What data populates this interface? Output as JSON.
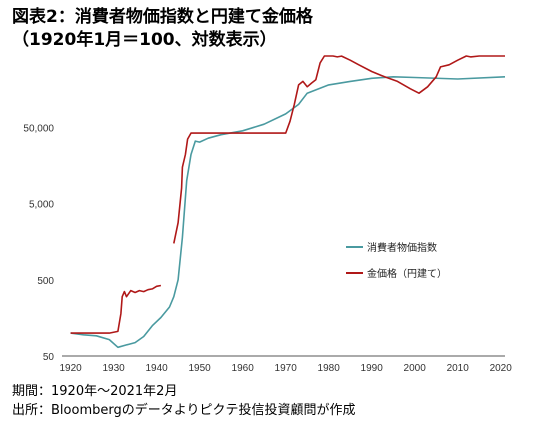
{
  "header": {
    "title_line1": "図表2：消費者物価指数と円建て金価格",
    "title_line2": "（1920年1月＝100、対数表示）"
  },
  "footer": {
    "period": "期間：1920年～2021年2月",
    "source": "出所：Bloombergのデータよりピクテ投信投資顧問が作成"
  },
  "chart_data": {
    "type": "line",
    "y_scale": "log",
    "xlim": [
      1918,
      2021
    ],
    "ylim": [
      50,
      300000
    ],
    "x_ticks": [
      1920,
      1930,
      1940,
      1950,
      1960,
      1970,
      1980,
      1990,
      2000,
      2010,
      2020
    ],
    "y_ticks": [
      50,
      500,
      5000,
      50000
    ],
    "y_tick_labels": [
      "50",
      "500",
      "5,000",
      "50,000"
    ],
    "grid": false,
    "legend_position": "center-right",
    "series": [
      {
        "name": "消費者物価指数",
        "color": "#4a9aa0",
        "x": [
          1920,
          1923,
          1926,
          1929,
          1931,
          1933,
          1935,
          1937,
          1939,
          1941,
          1943,
          1944,
          1945,
          1946,
          1947,
          1948,
          1949,
          1950,
          1952,
          1955,
          1960,
          1965,
          1970,
          1973,
          1975,
          1980,
          1985,
          1990,
          1995,
          2000,
          2010,
          2021
        ],
        "y": [
          100,
          95,
          92,
          82,
          65,
          70,
          75,
          90,
          125,
          160,
          220,
          300,
          500,
          1800,
          10000,
          22000,
          33000,
          32000,
          36000,
          40000,
          45000,
          55000,
          75000,
          100000,
          140000,
          180000,
          200000,
          220000,
          230000,
          225000,
          215000,
          230000
        ]
      },
      {
        "name": "金価格（円建て）",
        "color": "#b01818",
        "segments": [
          {
            "x": [
              1920,
              1925,
              1929,
              1931,
              1931.7,
              1932,
              1932.5,
              1933,
              1934,
              1935,
              1936,
              1937,
              1938,
              1939,
              1940,
              1941
            ],
            "y": [
              100,
              100,
              100,
              105,
              180,
              300,
              350,
              300,
              360,
              340,
              360,
              350,
              370,
              380,
              410,
              420
            ]
          },
          {
            "x": [
              1944,
              1945,
              1945.8,
              1946,
              1946.7,
              1947.2,
              1948,
              1949,
              1950,
              1960,
              1970,
              1971,
              1972,
              1973,
              1974,
              1975,
              1976,
              1977,
              1978,
              1979,
              1980,
              1981,
              1982,
              1983,
              1985,
              1987,
              1990,
              1993,
              1996,
              1999,
              2001,
              2003,
              2005,
              2006,
              2008,
              2010,
              2012,
              2013,
              2015,
              2017,
              2019,
              2020,
              2021
            ],
            "y": [
              1500,
              2800,
              8000,
              15000,
              22000,
              35000,
              42000,
              42000,
              42000,
              42000,
              42000,
              60000,
              100000,
              180000,
              200000,
              170000,
              190000,
              210000,
              350000,
              600000,
              560000,
              480000,
              420000,
              430000,
              380000,
              330000,
              270000,
              230000,
              200000,
              160000,
              140000,
              170000,
              230000,
              310000,
              330000,
              380000,
              460000,
              420000,
              470000,
              450000,
              480000,
              560000,
              620000
            ]
          }
        ]
      }
    ]
  }
}
